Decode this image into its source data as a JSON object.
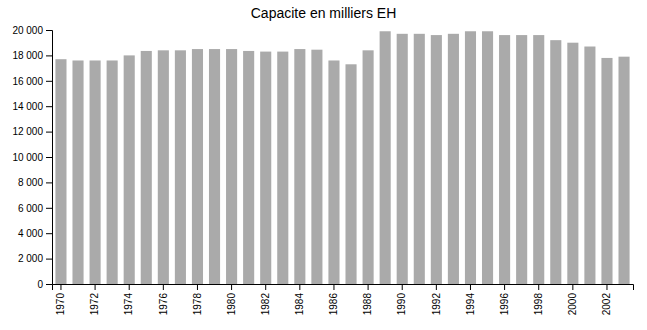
{
  "chart_data": {
    "type": "bar",
    "title": "Capacite en milliers EH",
    "categories": [
      "1970",
      null,
      "1972",
      null,
      "1974",
      null,
      "1976",
      null,
      "1978",
      null,
      "1980",
      null,
      "1982",
      null,
      "1984",
      null,
      "1986",
      null,
      "1988",
      null,
      "1990",
      null,
      "1992",
      null,
      "1994",
      null,
      "1996",
      null,
      "1998",
      null,
      "2000",
      null,
      "2002",
      null
    ],
    "values": [
      17700,
      17600,
      17600,
      17600,
      18000,
      18350,
      18400,
      18400,
      18500,
      18500,
      18500,
      18350,
      18300,
      18300,
      18500,
      18450,
      17600,
      17300,
      18400,
      19900,
      19700,
      19700,
      19600,
      19700,
      19900,
      19900,
      19600,
      19600,
      19600,
      19200,
      19000,
      18700,
      17800,
      17900
    ],
    "color": "#aaaaaa",
    "ylim": [
      0,
      20000
    ],
    "yticks": [
      0,
      {
        "value": 2000,
        "label": "2 000"
      },
      {
        "value": 4000,
        "label": "4 000"
      },
      {
        "value": 6000,
        "label": "6 000"
      },
      {
        "value": 8000,
        "label": "8 000"
      },
      {
        "value": 10000,
        "label": "10 000"
      },
      {
        "value": 12000,
        "label": "12 000"
      },
      {
        "value": 14000,
        "label": "14 000"
      },
      {
        "value": 16000,
        "label": "16 000"
      },
      {
        "value": 18000,
        "label": "18 000"
      },
      {
        "value": 20000,
        "label": "20 000"
      }
    ],
    "grid": false
  }
}
